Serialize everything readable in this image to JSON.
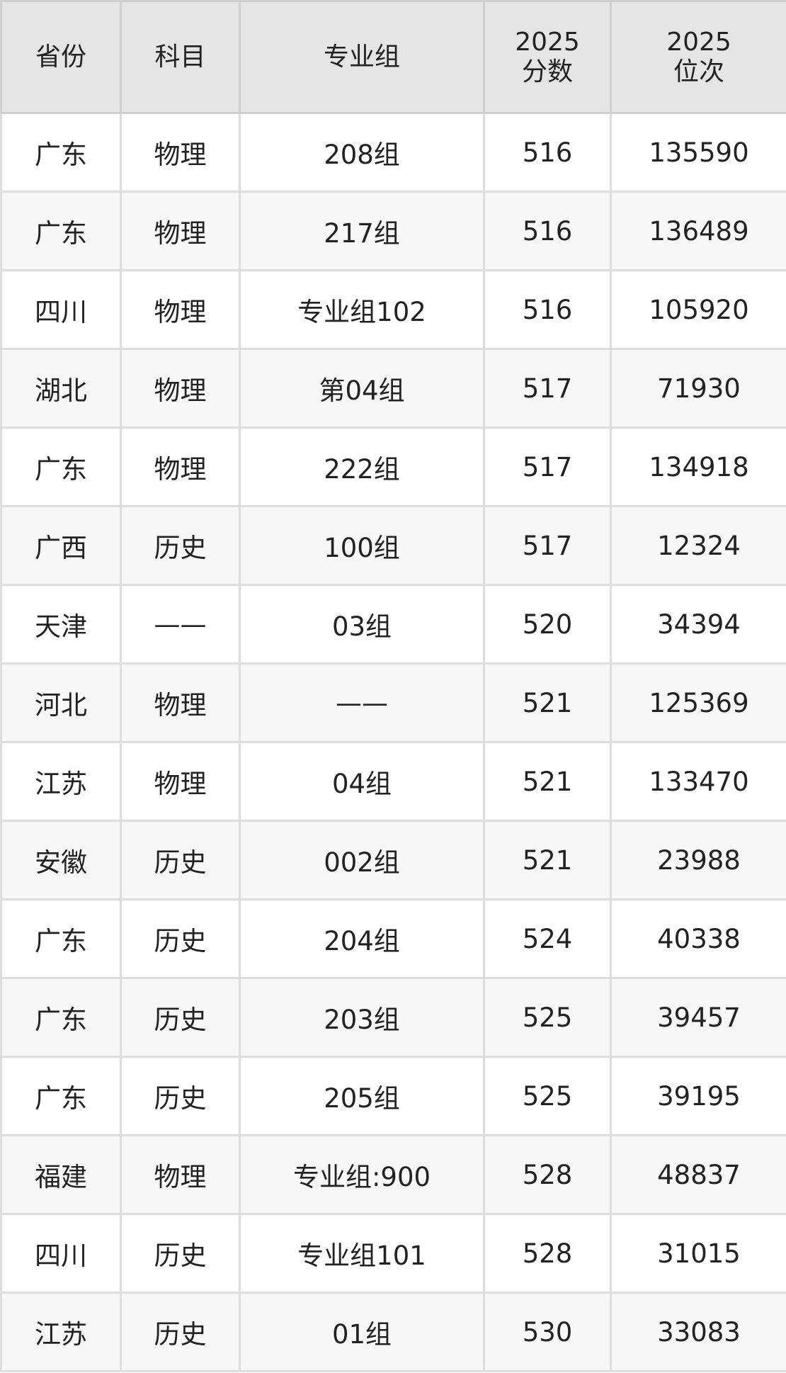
{
  "headers": [
    "省份",
    "科目",
    "专业组",
    "2025\n分数",
    "2025\n位次"
  ],
  "header_lines": {
    "score": [
      "2025",
      "分数"
    ],
    "rank": [
      "2025",
      "位次"
    ]
  },
  "rows": [
    [
      "广东",
      "物理",
      "208组",
      "516",
      "135590"
    ],
    [
      "广东",
      "物理",
      "217组",
      "516",
      "136489"
    ],
    [
      "四川",
      "物理",
      "专业组102",
      "516",
      "105920"
    ],
    [
      "湖北",
      "物理",
      "第04组",
      "517",
      "71930"
    ],
    [
      "广东",
      "物理",
      "222组",
      "517",
      "134918"
    ],
    [
      "广西",
      "历史",
      "100组",
      "517",
      "12324"
    ],
    [
      "天津",
      "——",
      "03组",
      "520",
      "34394"
    ],
    [
      "河北",
      "物理",
      "——",
      "521",
      "125369"
    ],
    [
      "江苏",
      "物理",
      "04组",
      "521",
      "133470"
    ],
    [
      "安徽",
      "历史",
      "002组",
      "521",
      "23988"
    ],
    [
      "广东",
      "历史",
      "204组",
      "524",
      "40338"
    ],
    [
      "广东",
      "历史",
      "203组",
      "525",
      "39457"
    ],
    [
      "广东",
      "历史",
      "205组",
      "525",
      "39195"
    ],
    [
      "福建",
      "物理",
      "专业组:900",
      "528",
      "48837"
    ],
    [
      "四川",
      "历史",
      "专业组101",
      "528",
      "31015"
    ],
    [
      "江苏",
      "历史",
      "01组",
      "530",
      "33083"
    ]
  ]
}
